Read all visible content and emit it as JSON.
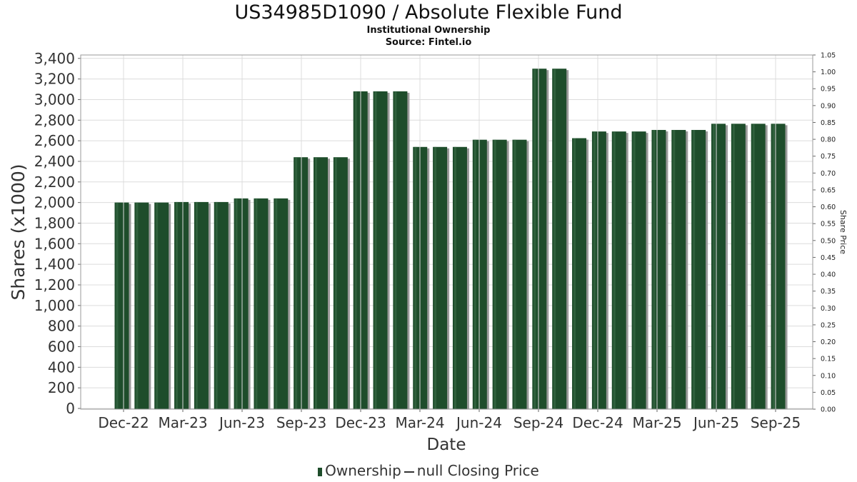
{
  "chart_data": {
    "type": "bar",
    "title": "US34985D1090 / Absolute Flexible Fund",
    "subtitle": [
      "Institutional Ownership",
      "Source: Fintel.io"
    ],
    "xlabel": "Date",
    "ylabel": "Shares (x1000)",
    "y2label": "Share Price",
    "ylim": [
      0,
      3400
    ],
    "y2lim": [
      0,
      1.05
    ],
    "yticks": [
      "0",
      "200",
      "400",
      "600",
      "800",
      "1,000",
      "1,200",
      "1,400",
      "1,600",
      "1,800",
      "2,000",
      "2,200",
      "2,400",
      "2,600",
      "2,800",
      "3,000",
      "3,200",
      "3,400"
    ],
    "y2ticks": [
      "0.00",
      "0.05",
      "0.10",
      "0.15",
      "0.20",
      "0.25",
      "0.30",
      "0.35",
      "0.40",
      "0.45",
      "0.50",
      "0.55",
      "0.60",
      "0.65",
      "0.70",
      "0.75",
      "0.80",
      "0.85",
      "0.90",
      "0.95",
      "1.00",
      "1.05"
    ],
    "xticks": [
      "Dec-22",
      "Mar-23",
      "Jun-23",
      "Sep-23",
      "Dec-23",
      "Mar-24",
      "Jun-24",
      "Sep-24",
      "Dec-24",
      "Mar-25",
      "Jun-25",
      "Sep-25"
    ],
    "grid": true,
    "legend_position": "bottom",
    "series": [
      {
        "name": "Ownership",
        "color": "#1e4d2b",
        "values": [
          2000,
          2000,
          2000,
          2005,
          2005,
          2005,
          2040,
          2040,
          2040,
          2440,
          2440,
          2440,
          3080,
          3080,
          3080,
          2540,
          2540,
          2540,
          2610,
          2610,
          2610,
          3300,
          3300,
          2625,
          2690,
          2690,
          2690,
          2705,
          2705,
          2705,
          2765,
          2765,
          2765,
          2765
        ]
      },
      {
        "name": "null Closing Price",
        "color": "#333333",
        "values": []
      }
    ]
  },
  "legend": {
    "ownership": "Ownership",
    "price": "null Closing Price"
  }
}
